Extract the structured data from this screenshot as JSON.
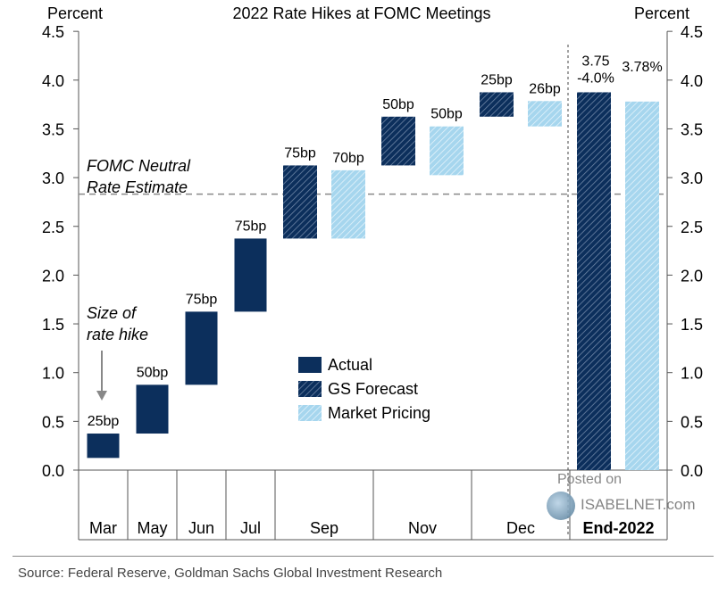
{
  "chart_data": {
    "type": "bar",
    "title": "2022 Rate Hikes at FOMC Meetings",
    "left_axis_label": "Percent",
    "right_axis_label": "Percent",
    "ylim": [
      0,
      4.5
    ],
    "yticks": [
      "0.0",
      "0.5",
      "1.0",
      "1.5",
      "2.0",
      "2.5",
      "3.0",
      "3.5",
      "4.0",
      "4.5"
    ],
    "categories": [
      "Mar",
      "May",
      "Jun",
      "Jul",
      "Sep",
      "Nov",
      "Dec",
      "End-2022"
    ],
    "series": [
      {
        "name": "Actual",
        "color": "#0c2f5c",
        "pattern": "solid"
      },
      {
        "name": "GS Forecast",
        "color": "#0c2f5c",
        "pattern": "hatch"
      },
      {
        "name": "Market Pricing",
        "color": "#9fd0ea",
        "pattern": "light-hatch"
      }
    ],
    "bars": [
      {
        "category": "Mar",
        "series": "Actual",
        "start": 0.125,
        "end": 0.375,
        "label": "25bp"
      },
      {
        "category": "May",
        "series": "Actual",
        "start": 0.375,
        "end": 0.875,
        "label": "50bp"
      },
      {
        "category": "Jun",
        "series": "Actual",
        "start": 0.875,
        "end": 1.625,
        "label": "75bp"
      },
      {
        "category": "Jul",
        "series": "Actual",
        "start": 1.625,
        "end": 2.375,
        "label": "75bp"
      },
      {
        "category": "Sep",
        "series": "GS Forecast",
        "start": 2.375,
        "end": 3.125,
        "label": "75bp"
      },
      {
        "category": "Sep",
        "series": "Market Pricing",
        "start": 2.375,
        "end": 3.075,
        "label": "70bp"
      },
      {
        "category": "Nov",
        "series": "GS Forecast",
        "start": 3.125,
        "end": 3.625,
        "label": "50bp"
      },
      {
        "category": "Nov",
        "series": "Market Pricing",
        "start": 3.025,
        "end": 3.525,
        "label": "50bp"
      },
      {
        "category": "Dec",
        "series": "GS Forecast",
        "start": 3.625,
        "end": 3.875,
        "label": "25bp"
      },
      {
        "category": "Dec",
        "series": "Market Pricing",
        "start": 3.525,
        "end": 3.785,
        "label": "26bp"
      },
      {
        "category": "End-2022",
        "series": "GS Forecast",
        "start": 0,
        "end": 3.875,
        "label": [
          "3.75",
          "-4.0%"
        ]
      },
      {
        "category": "End-2022",
        "series": "Market Pricing",
        "start": 0,
        "end": 3.78,
        "label": "3.78%"
      }
    ],
    "reference_line": {
      "value": 2.83,
      "label": [
        "FOMC Neutral",
        "Rate Estimate"
      ],
      "style": "dashed"
    },
    "annotation": {
      "text": [
        "Size of",
        "rate hike"
      ],
      "points_to": "Mar"
    },
    "legend": {
      "placement": "center",
      "entries": [
        "Actual",
        "GS Forecast",
        "Market Pricing"
      ]
    },
    "grid": false
  },
  "footer": {
    "source": "Source: Federal Reserve, Goldman Sachs Global Investment Research"
  },
  "watermark": {
    "posted": "Posted on",
    "site": "ISABELNET.com"
  }
}
